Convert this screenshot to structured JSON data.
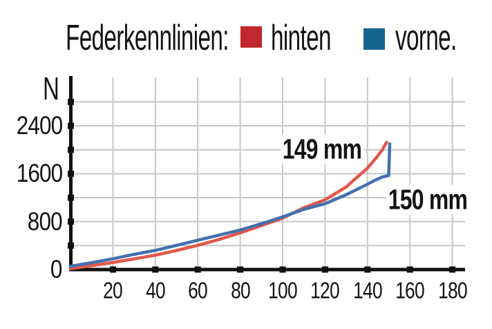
{
  "header": {
    "title": "Federkennlinien:",
    "legend": [
      {
        "label": "hinten",
        "color": "#c1272d"
      },
      {
        "label": "vorne.",
        "color": "#16658f"
      }
    ]
  },
  "chart_data": {
    "type": "line",
    "title": "Federkennlinien",
    "xlabel": "",
    "ylabel": "N",
    "x_unit": "mm",
    "y_unit": "N",
    "xlim": [
      0,
      186
    ],
    "ylim": [
      0,
      3180
    ],
    "grid": true,
    "x_ticks": [
      20,
      40,
      60,
      80,
      100,
      120,
      140,
      160,
      180
    ],
    "y_ticks_labeled": [
      {
        "value": 0,
        "label": "0"
      },
      {
        "value": 800,
        "label": "800"
      },
      {
        "value": 1600,
        "label": "1600"
      },
      {
        "value": 2400,
        "label": "2400"
      }
    ],
    "y_minor_step": 400,
    "y_minor_max": 2800,
    "series": [
      {
        "name": "hinten",
        "color": "#e2574a",
        "points": [
          [
            0,
            15
          ],
          [
            10,
            65
          ],
          [
            20,
            118
          ],
          [
            30,
            178
          ],
          [
            40,
            240
          ],
          [
            50,
            318
          ],
          [
            60,
            405
          ],
          [
            70,
            502
          ],
          [
            80,
            613
          ],
          [
            90,
            735
          ],
          [
            100,
            858
          ],
          [
            110,
            1032
          ],
          [
            120,
            1165
          ],
          [
            130,
            1380
          ],
          [
            140,
            1695
          ],
          [
            144,
            1860
          ],
          [
            147,
            2000
          ],
          [
            149,
            2125
          ]
        ]
      },
      {
        "name": "vorne",
        "color": "#4470ae",
        "points": [
          [
            0,
            55
          ],
          [
            10,
            115
          ],
          [
            20,
            180
          ],
          [
            30,
            255
          ],
          [
            40,
            320
          ],
          [
            50,
            405
          ],
          [
            60,
            490
          ],
          [
            70,
            575
          ],
          [
            80,
            660
          ],
          [
            90,
            765
          ],
          [
            100,
            880
          ],
          [
            110,
            1005
          ],
          [
            120,
            1100
          ],
          [
            130,
            1250
          ],
          [
            140,
            1425
          ],
          [
            144,
            1500
          ],
          [
            147,
            1545
          ],
          [
            150,
            1570
          ],
          [
            150.5,
            2100
          ]
        ]
      }
    ],
    "annotations": [
      {
        "text": "149 mm",
        "x": 118.5,
        "y": 2010
      },
      {
        "text": "150 mm",
        "x": 168.5,
        "y": 1165
      }
    ]
  }
}
